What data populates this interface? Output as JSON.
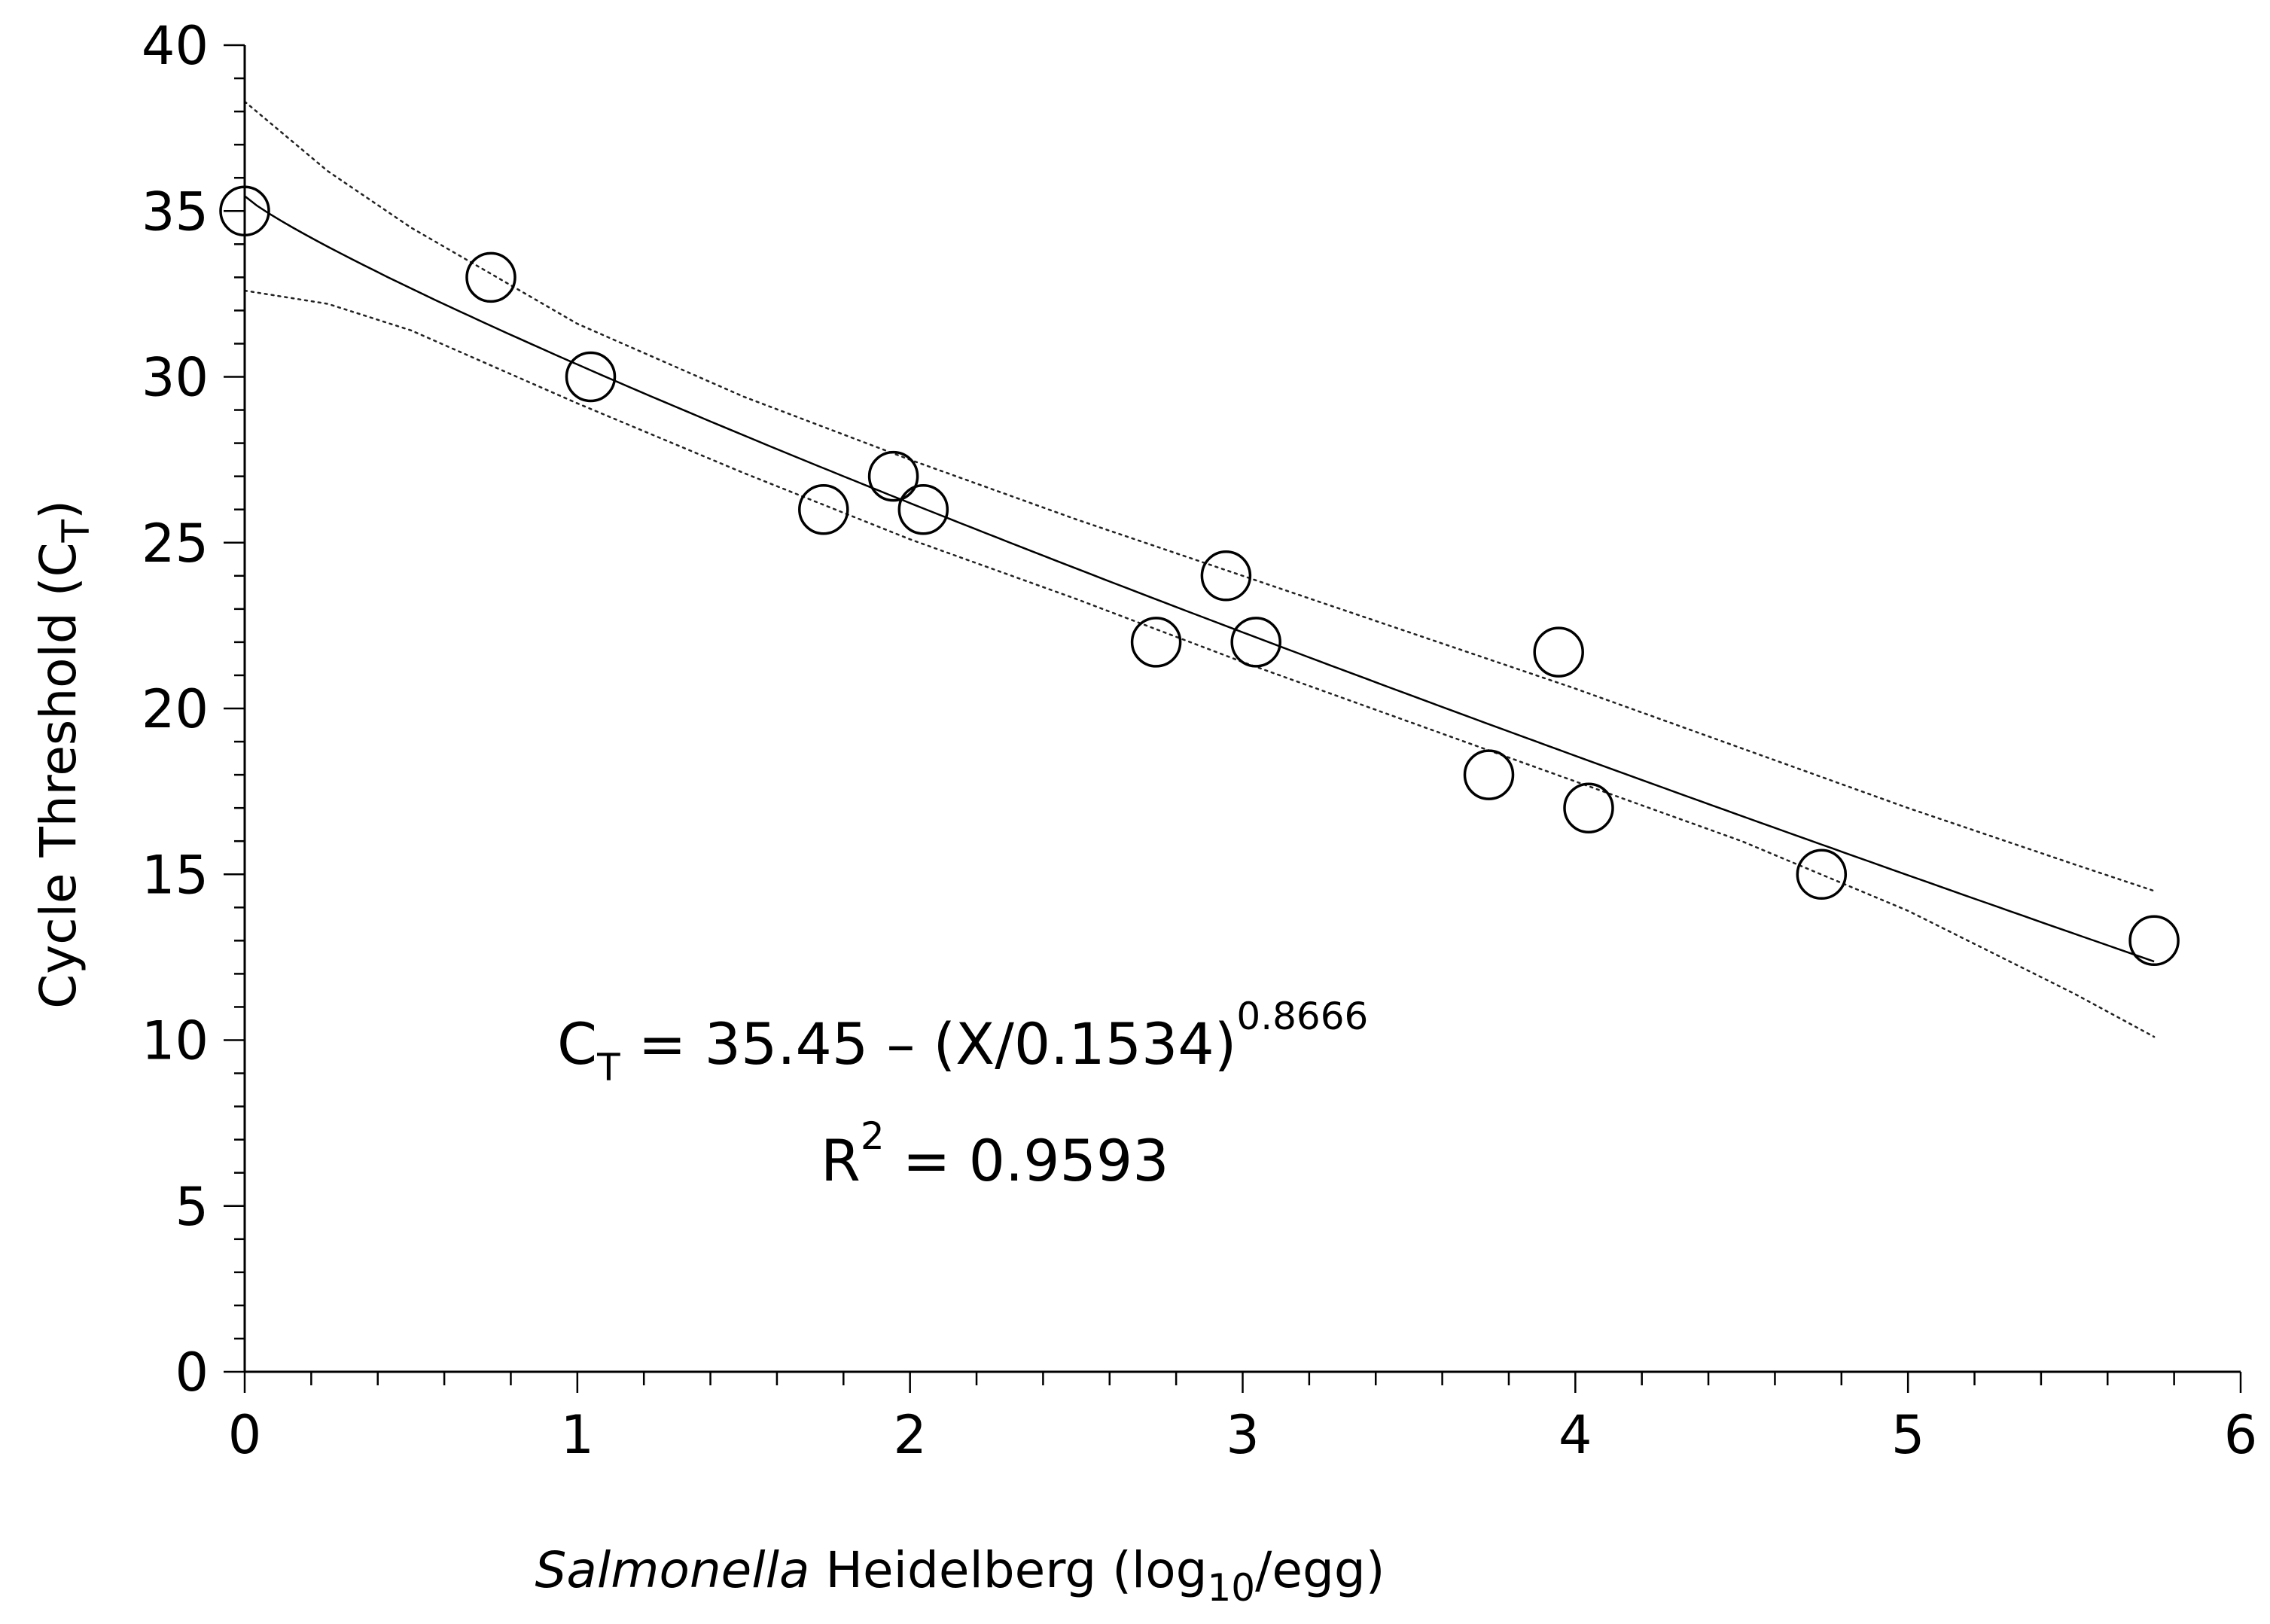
{
  "chart_data": {
    "type": "scatter",
    "xlabel": {
      "italic": "Salmonella",
      "pre": "Heidelberg (log",
      "sub": "10",
      "post": "/egg)"
    },
    "ylabel": {
      "pre": "Cycle Threshold (C",
      "sub": "T",
      "post": ")"
    },
    "xlim": [
      0,
      6
    ],
    "ylim": [
      0,
      40
    ],
    "xticks": [
      "0",
      "1",
      "2",
      "3",
      "4",
      "5",
      "6"
    ],
    "yticks": [
      "0",
      "5",
      "10",
      "15",
      "20",
      "25",
      "30",
      "35",
      "40"
    ],
    "x_minor_step": 0.2,
    "y_minor_step": 1,
    "grid": false,
    "points": [
      {
        "x": 0.0,
        "y": 35
      },
      {
        "x": 0.74,
        "y": 33
      },
      {
        "x": 1.04,
        "y": 30
      },
      {
        "x": 1.74,
        "y": 26
      },
      {
        "x": 1.95,
        "y": 27
      },
      {
        "x": 2.04,
        "y": 26
      },
      {
        "x": 2.74,
        "y": 22
      },
      {
        "x": 2.95,
        "y": 24
      },
      {
        "x": 3.04,
        "y": 22
      },
      {
        "x": 3.74,
        "y": 18
      },
      {
        "x": 3.95,
        "y": 21.7
      },
      {
        "x": 4.04,
        "y": 17
      },
      {
        "x": 4.74,
        "y": 15
      },
      {
        "x": 5.74,
        "y": 13
      }
    ],
    "fit": {
      "a": 35.45,
      "b": 0.1534,
      "c": 0.8666,
      "x_range": [
        0,
        5.74
      ],
      "style": "solid"
    },
    "confidence_band": {
      "style": "dotted",
      "upper": [
        [
          0,
          38.3
        ],
        [
          0.25,
          36.2
        ],
        [
          0.5,
          34.5
        ],
        [
          1,
          31.6
        ],
        [
          1.5,
          29.4
        ],
        [
          2,
          27.5
        ],
        [
          2.5,
          25.7
        ],
        [
          3,
          24.0
        ],
        [
          3.5,
          22.3
        ],
        [
          4,
          20.6
        ],
        [
          4.5,
          18.8
        ],
        [
          5,
          17.0
        ],
        [
          5.5,
          15.3
        ],
        [
          5.74,
          14.5
        ]
      ],
      "lower": [
        [
          0,
          32.6
        ],
        [
          0.25,
          32.2
        ],
        [
          0.5,
          31.4
        ],
        [
          1,
          29.2
        ],
        [
          1.5,
          27.1
        ],
        [
          2,
          25.1
        ],
        [
          2.5,
          23.3
        ],
        [
          3,
          21.4
        ],
        [
          3.5,
          19.6
        ],
        [
          4,
          17.8
        ],
        [
          4.5,
          16.0
        ],
        [
          5,
          13.9
        ],
        [
          5.5,
          11.4
        ],
        [
          5.74,
          10.1
        ]
      ]
    },
    "annotations": {
      "equation": {
        "c": "C",
        "c_sub": "T",
        "body": " = 35.45 – (X/0.1534)",
        "exp": "0.8666"
      },
      "r2": {
        "r": "R",
        "r_sup": "2",
        "body": " = 0.9593"
      }
    }
  }
}
